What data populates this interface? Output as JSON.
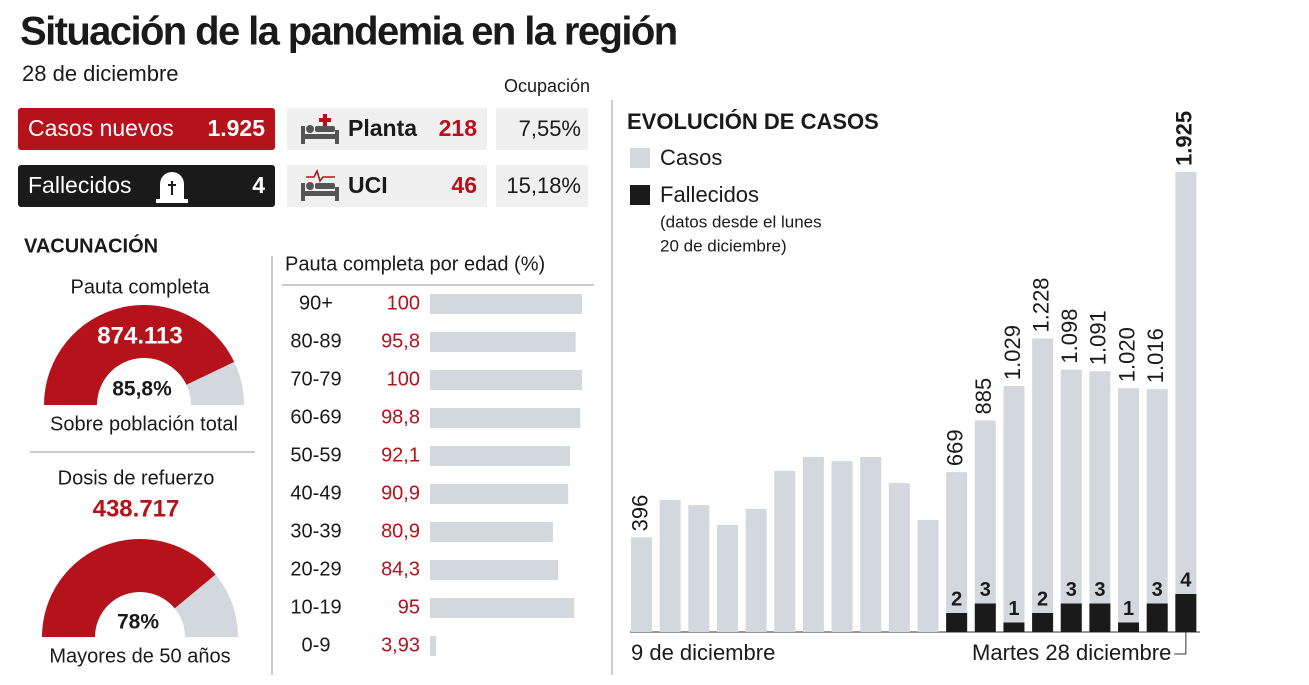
{
  "header": {
    "title": "Situación de la pandemia en la región",
    "date": "28 de diciembre"
  },
  "summary": {
    "cases": {
      "label": "Casos nuevos",
      "value": "1.925"
    },
    "deaths": {
      "label": "Fallecidos",
      "value": "4"
    },
    "occupancy_header": "Ocupación",
    "ward": {
      "label": "Planta",
      "beds": "218",
      "occupancy": "7,55%"
    },
    "icu": {
      "label": "UCI",
      "beds": "46",
      "occupancy": "15,18%"
    }
  },
  "vaccination": {
    "title": "VACUNACIÓN",
    "gauges": [
      {
        "title": "Pauta completa",
        "count": "874.113",
        "value": 85.8,
        "value_label": "85,8%",
        "caption": "Sobre población total"
      },
      {
        "title": "Dosis de refuerzo",
        "count": "438.717",
        "value": 78,
        "value_label": "78%",
        "caption": "Mayores de 50 años"
      }
    ]
  },
  "chart_data": [
    {
      "type": "hbar",
      "title": "Pauta completa por edad (%)",
      "categories": [
        "90+",
        "80-89",
        "70-79",
        "60-69",
        "50-59",
        "40-49",
        "30-39",
        "20-29",
        "10-19",
        "0-9"
      ],
      "values": [
        100,
        95.8,
        100,
        98.8,
        92.1,
        90.9,
        80.9,
        84.3,
        95,
        3.93
      ],
      "value_labels": [
        "100",
        "95,8",
        "100",
        "98,8",
        "92,1",
        "90,9",
        "80,9",
        "84,3",
        "95",
        "3,93"
      ],
      "xlim": [
        0,
        100
      ],
      "color": "#d3d8de"
    },
    {
      "type": "bar",
      "title": "EVOLUCIÓN DE CASOS",
      "note": [
        "(datos desde el lunes",
        "20 de diciembre)"
      ],
      "categories": [
        "9 de diciembre",
        null,
        null,
        null,
        null,
        null,
        null,
        null,
        null,
        null,
        null,
        null,
        null,
        null,
        null,
        null,
        null,
        null,
        null,
        "Martes 28 diciembre"
      ],
      "series": [
        {
          "name": "Casos",
          "color": "#d3d8de",
          "values": [
            396,
            552,
            531,
            448,
            515,
            674,
            732,
            715,
            732,
            623,
            469,
            669,
            885,
            1029,
            1228,
            1098,
            1091,
            1020,
            1016,
            1925
          ],
          "value_labels": [
            "396",
            null,
            null,
            null,
            null,
            null,
            null,
            null,
            null,
            null,
            null,
            "669",
            "885",
            "1.029",
            "1.228",
            "1.098",
            "1.091",
            "1.020",
            "1.016",
            "1.925"
          ]
        },
        {
          "name": "Fallecidos",
          "color": "#1a1a1a",
          "values": [
            null,
            null,
            null,
            null,
            null,
            null,
            null,
            null,
            null,
            null,
            null,
            2,
            3,
            1,
            2,
            3,
            3,
            1,
            3,
            4
          ]
        }
      ]
    }
  ]
}
